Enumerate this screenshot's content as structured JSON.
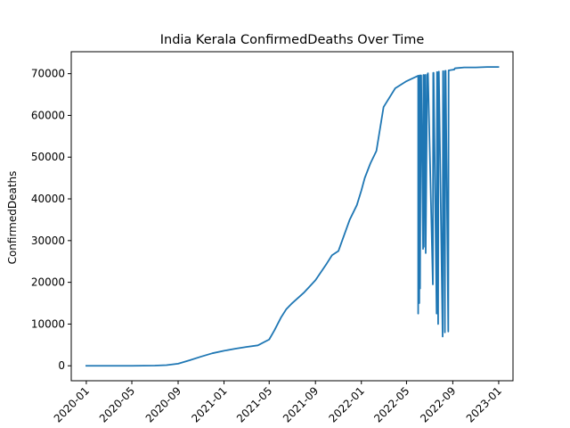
{
  "chart_data": {
    "type": "line",
    "title": "India Kerala ConfirmedDeaths Over Time",
    "xlabel": "",
    "ylabel": "ConfirmedDeaths",
    "xlim": [
      "2019-11-22",
      "2023-02-08"
    ],
    "ylim": [
      -3583,
      75263
    ],
    "grid": false,
    "x_ticks": [
      "2020-01",
      "2020-05",
      "2020-09",
      "2021-01",
      "2021-05",
      "2021-09",
      "2022-01",
      "2022-05",
      "2022-09",
      "2023-01"
    ],
    "y_ticks": [
      0,
      10000,
      20000,
      30000,
      40000,
      50000,
      60000,
      70000
    ],
    "y_tick_labels": [
      "0",
      "10000",
      "20000",
      "30000",
      "40000",
      "50000",
      "60000",
      "70000"
    ],
    "series": [
      {
        "color": "#1f77b4",
        "x": [
          "2020-01-01",
          "2020-03-01",
          "2020-05-01",
          "2020-07-01",
          "2020-08-01",
          "2020-09-01",
          "2020-10-01",
          "2020-11-01",
          "2020-12-01",
          "2021-01-01",
          "2021-02-01",
          "2021-03-01",
          "2021-04-01",
          "2021-05-01",
          "2021-05-15",
          "2021-06-01",
          "2021-06-15",
          "2021-07-01",
          "2021-08-01",
          "2021-09-01",
          "2021-10-01",
          "2021-10-15",
          "2021-11-01",
          "2021-12-01",
          "2021-12-20",
          "2022-01-01",
          "2022-01-10",
          "2022-01-25",
          "2022-02-10",
          "2022-03-01",
          "2022-04-01",
          "2022-05-01",
          "2022-06-01",
          "2022-06-01",
          "2022-06-02",
          "2022-06-04",
          "2022-06-05",
          "2022-06-06",
          "2022-06-08",
          "2022-06-09",
          "2022-06-14",
          "2022-06-15",
          "2022-06-16",
          "2022-06-19",
          "2022-06-20",
          "2022-06-21",
          "2022-06-25",
          "2022-06-26",
          "2022-06-27",
          "2022-07-10",
          "2022-07-11",
          "2022-07-12",
          "2022-07-20",
          "2022-07-21",
          "2022-07-22",
          "2022-07-24",
          "2022-07-25",
          "2022-07-26",
          "2022-08-05",
          "2022-08-06",
          "2022-08-07",
          "2022-08-11",
          "2022-08-12",
          "2022-08-13",
          "2022-08-20",
          "2022-08-21",
          "2022-08-22",
          "2022-09-05",
          "2022-09-06",
          "2022-09-07",
          "2022-10-01",
          "2022-11-01",
          "2022-12-01",
          "2022-12-31"
        ],
        "y": [
          0,
          0,
          0,
          50,
          150,
          500,
          1300,
          2200,
          3000,
          3600,
          4100,
          4500,
          4900,
          6300,
          8500,
          11500,
          13500,
          15000,
          17500,
          20500,
          24500,
          26500,
          27500,
          35000,
          38500,
          42000,
          45000,
          48500,
          51500,
          62000,
          66500,
          68200,
          69500,
          12500,
          69500,
          15000,
          69600,
          18500,
          69600,
          69600,
          28000,
          69700,
          28500,
          69700,
          69700,
          27000,
          69800,
          69800,
          70100,
          19500,
          70200,
          70200,
          12500,
          70400,
          70300,
          10000,
          70400,
          70500,
          7000,
          70600,
          70600,
          8000,
          70700,
          70700,
          8200,
          70800,
          70800,
          71000,
          71200,
          71300,
          71500,
          71500,
          71600,
          71600
        ]
      }
    ]
  }
}
